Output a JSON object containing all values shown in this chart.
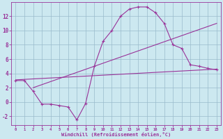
{
  "background_color": "#cce8f0",
  "grid_color": "#99bbcc",
  "line_color": "#993399",
  "xlabel": "Windchill (Refroidissement éolien,°C)",
  "xlim": [
    -0.5,
    23.5
  ],
  "ylim": [
    -3.2,
    14.0
  ],
  "xticks": [
    0,
    1,
    2,
    3,
    4,
    5,
    6,
    7,
    8,
    9,
    10,
    11,
    12,
    13,
    14,
    15,
    16,
    17,
    18,
    19,
    20,
    21,
    22,
    23
  ],
  "yticks": [
    -2,
    0,
    2,
    4,
    6,
    8,
    10,
    12
  ],
  "line1_x": [
    0,
    1,
    2,
    3,
    4,
    5,
    6,
    7,
    8,
    9,
    10,
    11,
    12,
    13,
    14,
    15,
    16,
    17,
    18,
    19,
    20,
    21,
    22,
    23
  ],
  "line1_y": [
    3.0,
    3.0,
    1.5,
    -0.3,
    -0.3,
    -0.5,
    -0.7,
    -2.5,
    -0.2,
    5.0,
    8.5,
    10.0,
    12.0,
    13.0,
    13.3,
    13.3,
    12.5,
    11.0,
    8.0,
    7.5,
    5.2,
    5.0,
    4.7,
    4.5
  ],
  "line2_x": [
    2,
    23
  ],
  "line2_y": [
    2.0,
    11.0
  ],
  "line3_x": [
    0,
    23
  ],
  "line3_y": [
    3.1,
    4.6
  ],
  "marker": "+"
}
